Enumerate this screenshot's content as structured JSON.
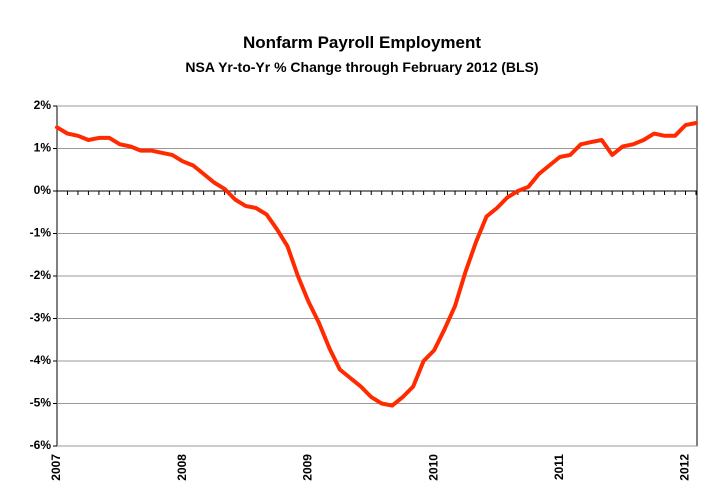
{
  "chart_data": {
    "type": "line",
    "title": "Nonfarm Payroll Employment",
    "subtitle": "NSA Yr-to-Yr % Change through February 2012 (BLS)",
    "categories": [
      "2007",
      null,
      null,
      null,
      null,
      null,
      null,
      null,
      null,
      null,
      null,
      null,
      "2008",
      null,
      null,
      null,
      null,
      null,
      null,
      null,
      null,
      null,
      null,
      null,
      "2009",
      null,
      null,
      null,
      null,
      null,
      null,
      null,
      null,
      null,
      null,
      null,
      "2010",
      null,
      null,
      null,
      null,
      null,
      null,
      null,
      null,
      null,
      null,
      null,
      "2011",
      null,
      null,
      null,
      null,
      null,
      null,
      null,
      null,
      null,
      null,
      null,
      "2012",
      null
    ],
    "values": [
      1.5,
      1.35,
      1.3,
      1.2,
      1.25,
      1.25,
      1.1,
      1.05,
      0.95,
      0.95,
      0.9,
      0.85,
      0.7,
      0.6,
      0.4,
      0.2,
      0.05,
      -0.2,
      -0.35,
      -0.4,
      -0.55,
      -0.9,
      -1.3,
      -2.0,
      -2.6,
      -3.1,
      -3.7,
      -4.2,
      -4.4,
      -4.6,
      -4.85,
      -5.0,
      -5.05,
      -4.85,
      -4.6,
      -4.0,
      -3.75,
      -3.25,
      -2.7,
      -1.9,
      -1.2,
      -0.6,
      -0.4,
      -0.15,
      0.0,
      0.1,
      0.4,
      0.6,
      0.8,
      0.85,
      1.1,
      1.15,
      1.2,
      0.85,
      1.05,
      1.1,
      1.2,
      1.35,
      1.3,
      1.3,
      1.55,
      1.6
    ],
    "color": "#ff2a00",
    "ylim": [
      -6,
      2
    ],
    "yticks": [
      {
        "value": -6,
        "label": "-6%"
      },
      {
        "value": -5,
        "label": "-5%"
      },
      {
        "value": -4,
        "label": "-4%"
      },
      {
        "value": -3,
        "label": "-3%"
      },
      {
        "value": -2,
        "label": "-2%"
      },
      {
        "value": -1,
        "label": "-1%"
      },
      {
        "value": 0,
        "label": "0%"
      },
      {
        "value": 1,
        "label": "1%"
      },
      {
        "value": 2,
        "label": "2%"
      }
    ],
    "grid": true
  }
}
